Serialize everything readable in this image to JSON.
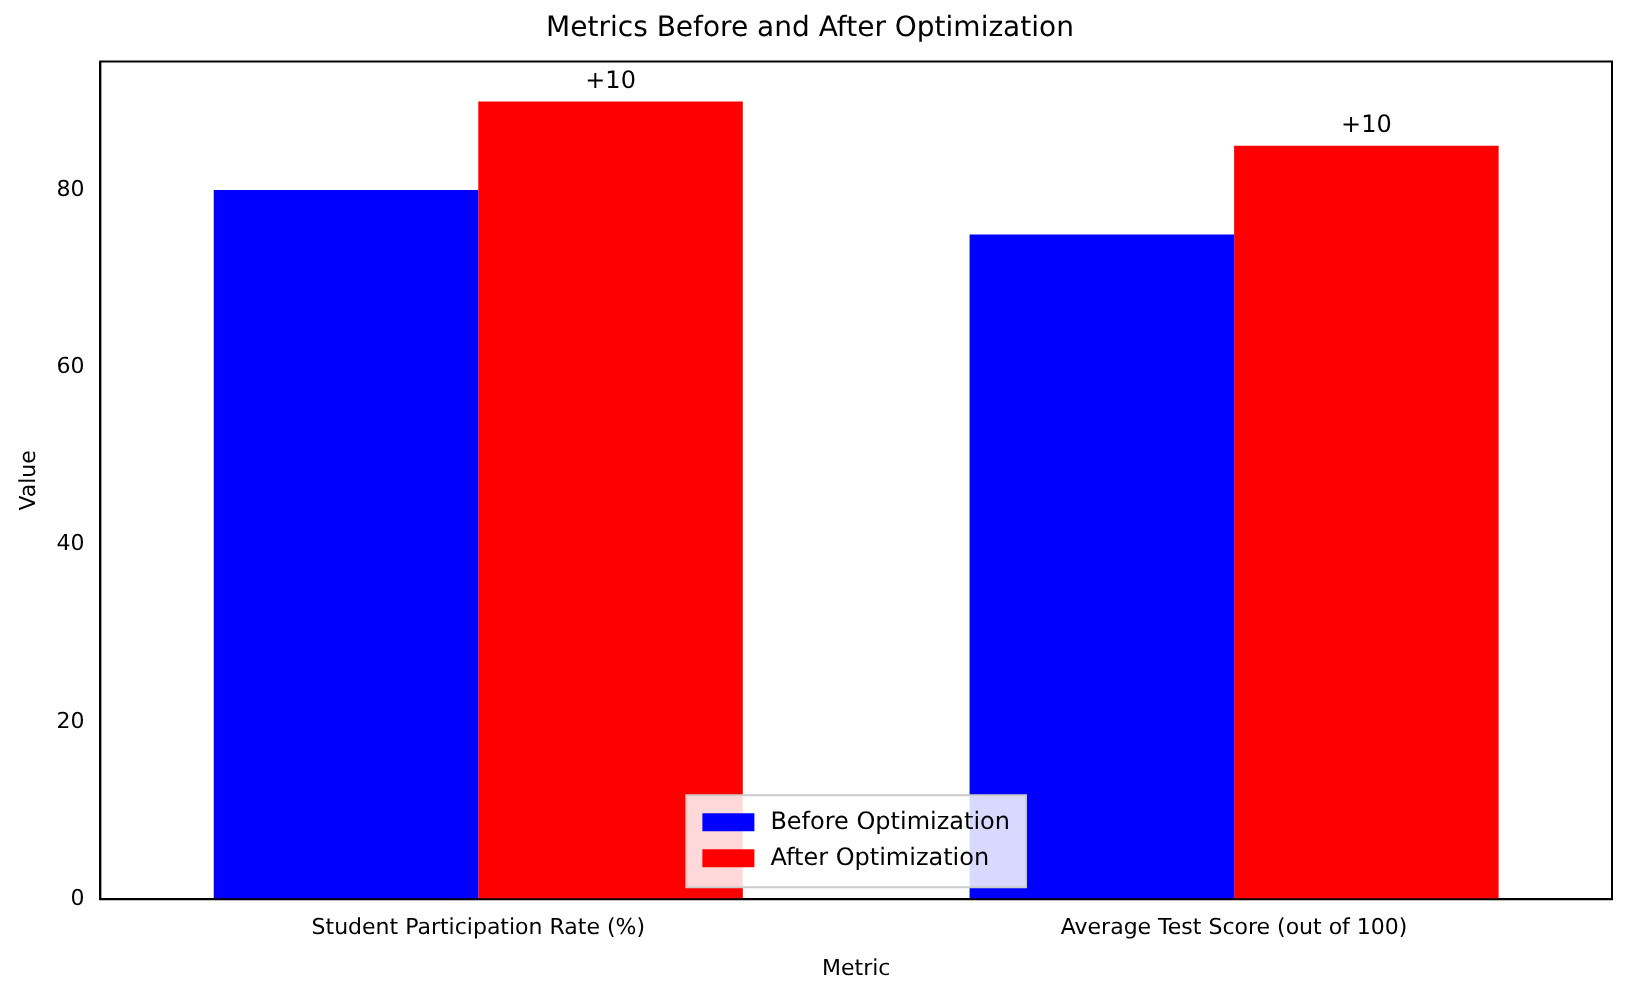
{
  "chart_data": {
    "type": "bar",
    "title": "Metrics Before and After Optimization",
    "xlabel": "Metric",
    "ylabel": "Value",
    "categories": [
      "Student Participation Rate (%)",
      "Average Test Score (out of 100)"
    ],
    "series": [
      {
        "name": "Before Optimization",
        "color": "#0000ff",
        "values": [
          80,
          75
        ]
      },
      {
        "name": "After Optimization",
        "color": "#ff0000",
        "values": [
          90,
          85
        ]
      }
    ],
    "ylim": [
      0,
      94.5
    ],
    "yticks": [
      0,
      20,
      40,
      60,
      80
    ],
    "grid": false,
    "legend": "bottom",
    "annotations": [
      "+10",
      "+10"
    ]
  }
}
